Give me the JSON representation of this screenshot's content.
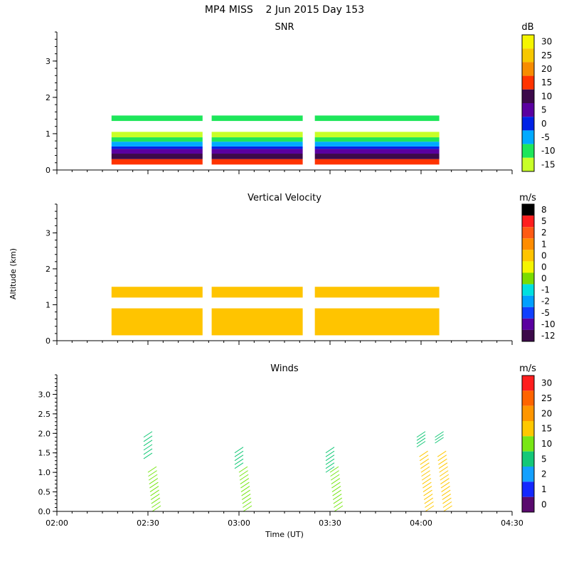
{
  "figure": {
    "title": "MP4 MISS    2 Jun 2015 Day 153",
    "xlabel": "Time (UT)",
    "ylabel": "Altitude (km)",
    "xticks": [
      "02:00",
      "02:30",
      "03:00",
      "03:30",
      "04:00",
      "04:30"
    ]
  },
  "chart_data": [
    {
      "type": "heatmap",
      "title": "SNR",
      "xrange_minutes_after_0200": [
        0,
        150
      ],
      "ylim": [
        0,
        3.8
      ],
      "yticks": [
        "0",
        "1",
        "2",
        "3"
      ],
      "colorbar": {
        "unit": "dB",
        "labels": [
          "30",
          "25",
          "20",
          "15",
          "10",
          "5",
          "0",
          "-5",
          "-10",
          "-15"
        ],
        "colors": [
          "#f5f500",
          "#f7c800",
          "#f78c00",
          "#ff3300",
          "#3c0a4a",
          "#5a00a0",
          "#0022e6",
          "#00aaff",
          "#1ee65a",
          "#c8ff28"
        ]
      },
      "data_blocks_minutes": [
        [
          18,
          48
        ],
        [
          51,
          81
        ],
        [
          85,
          126
        ]
      ],
      "layers": [
        {
          "from_km": 0.15,
          "to_km": 0.3,
          "level": "15"
        },
        {
          "from_km": 0.3,
          "to_km": 0.45,
          "level": "10"
        },
        {
          "from_km": 0.45,
          "to_km": 0.58,
          "level": "5"
        },
        {
          "from_km": 0.58,
          "to_km": 0.65,
          "level": "0"
        },
        {
          "from_km": 0.65,
          "to_km": 0.78,
          "level": "-5"
        },
        {
          "from_km": 0.78,
          "to_km": 0.9,
          "level": "-10"
        },
        {
          "from_km": 0.9,
          "to_km": 1.05,
          "level": "-15"
        },
        {
          "from_km": 1.35,
          "to_km": 1.5,
          "level": "-10"
        }
      ]
    },
    {
      "type": "heatmap",
      "title": "Vertical Velocity",
      "xrange_minutes_after_0200": [
        0,
        150
      ],
      "ylim": [
        0,
        3.8
      ],
      "yticks": [
        "0",
        "1",
        "2",
        "3"
      ],
      "colorbar": {
        "unit": "m/s",
        "labels": [
          "8",
          "5",
          "2",
          "1",
          "0",
          "0",
          "0",
          "-1",
          "-2",
          "-5",
          "-10",
          "-12"
        ],
        "colors": [
          "#000000",
          "#ff1e1e",
          "#ff5a14",
          "#ff8c00",
          "#ffc400",
          "#f5f500",
          "#7adc00",
          "#00e0e0",
          "#00a0ff",
          "#1040ff",
          "#5a00a0",
          "#3c0a4a"
        ]
      },
      "data_blocks_minutes": [
        [
          18,
          48
        ],
        [
          51,
          81
        ],
        [
          85,
          126
        ]
      ],
      "layers": [
        {
          "from_km": 0.15,
          "to_km": 0.9,
          "level": "0"
        },
        {
          "from_km": 1.2,
          "to_km": 1.5,
          "level": "0"
        }
      ]
    },
    {
      "type": "barbs",
      "title": "Winds",
      "xrange_minutes_after_0200": [
        0,
        150
      ],
      "ylim": [
        0,
        3.5
      ],
      "yticks": [
        "0.0",
        "0.5",
        "1.0",
        "1.5",
        "2.0",
        "2.5",
        "3.0"
      ],
      "colorbar": {
        "unit": "m/s",
        "labels": [
          "30",
          "25",
          "20",
          "15",
          "10",
          "5",
          "2",
          "1",
          "0"
        ],
        "colors": [
          "#ff1e1e",
          "#ff6400",
          "#ff9600",
          "#ffc800",
          "#78e614",
          "#14c878",
          "#14a0ff",
          "#1428ff",
          "#5a0a6e"
        ]
      },
      "profiles": [
        {
          "time_min": 30,
          "low": {
            "from_km": 0.0,
            "to_km": 1.0,
            "speed_band": "10"
          },
          "high": {
            "from_km": 1.35,
            "to_km": 1.9,
            "speed_band": "5"
          }
        },
        {
          "time_min": 60,
          "low": {
            "from_km": 0.0,
            "to_km": 1.0,
            "speed_band": "10"
          },
          "high": {
            "from_km": 1.1,
            "to_km": 1.5,
            "speed_band": "5"
          }
        },
        {
          "time_min": 90,
          "low": {
            "from_km": 0.0,
            "to_km": 1.0,
            "speed_band": "10"
          },
          "high": {
            "from_km": 1.0,
            "to_km": 1.5,
            "speed_band": "5"
          }
        },
        {
          "time_min": 120,
          "low": {
            "from_km": 0.0,
            "to_km": 1.4,
            "speed_band": "15"
          },
          "high": {
            "from_km": 1.65,
            "to_km": 1.9,
            "speed_band": "5"
          }
        },
        {
          "time_min": 126,
          "low": {
            "from_km": 0.0,
            "to_km": 1.4,
            "speed_band": "15"
          },
          "high": {
            "from_km": 1.75,
            "to_km": 1.9,
            "speed_band": "5"
          }
        }
      ]
    }
  ]
}
